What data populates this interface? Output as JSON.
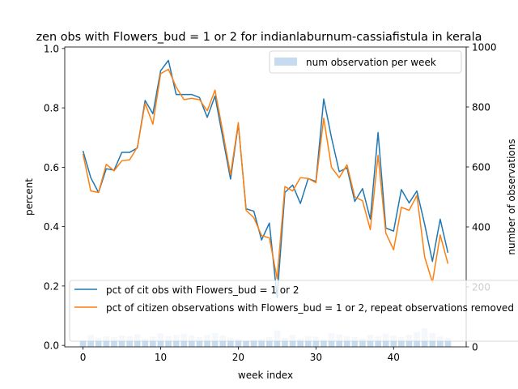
{
  "chart_data": {
    "type": "line",
    "title": "zen obs with Flowers_bud = 1 or 2 for indianlaburnum-cassiafistula in kerala",
    "xlabel": "week index",
    "ylabel": "percent",
    "y2label": "number of observations",
    "xlim": [
      -2.35,
      49.35
    ],
    "ylim": [
      -0.005,
      1.005
    ],
    "y2lim": [
      0,
      1000
    ],
    "xticks": [
      0,
      10,
      20,
      30,
      40
    ],
    "yticks": [
      0.0,
      0.2,
      0.4,
      0.6,
      0.8,
      1.0
    ],
    "y2ticks": [
      0,
      200,
      400,
      600,
      800,
      1000
    ],
    "grid": false,
    "series": [
      {
        "name": "pct of cit obs with Flowers_bud = 1 or 2",
        "color": "#1f77b4",
        "axis": "left",
        "kind": "line",
        "values": [
          0.655,
          0.565,
          0.515,
          0.595,
          0.59,
          0.65,
          0.65,
          0.665,
          0.825,
          0.78,
          0.925,
          0.96,
          0.845,
          0.845,
          0.845,
          0.835,
          0.768,
          0.84,
          0.7,
          0.56,
          0.745,
          0.46,
          0.452,
          0.355,
          0.412,
          0.162,
          0.515,
          0.54,
          0.478,
          0.562,
          0.552,
          0.83,
          0.7,
          0.585,
          0.598,
          0.485,
          0.528,
          0.425,
          0.717,
          0.395,
          0.385,
          0.525,
          0.48,
          0.52,
          0.408,
          0.283,
          0.425,
          0.312
        ]
      },
      {
        "name": "pct of citizen observations with Flowers_bud = 1 or 2, repeat observations removed",
        "color": "#ff7f0e",
        "axis": "left",
        "kind": "line",
        "values": [
          0.645,
          0.52,
          0.515,
          0.61,
          0.588,
          0.622,
          0.625,
          0.668,
          0.815,
          0.745,
          0.915,
          0.93,
          0.87,
          0.828,
          0.832,
          0.828,
          0.79,
          0.86,
          0.72,
          0.575,
          0.75,
          0.455,
          0.43,
          0.37,
          0.362,
          0.225,
          0.535,
          0.52,
          0.565,
          0.562,
          0.548,
          0.765,
          0.6,
          0.565,
          0.608,
          0.5,
          0.487,
          0.39,
          0.64,
          0.378,
          0.322,
          0.465,
          0.455,
          0.505,
          0.298,
          0.212,
          0.372,
          0.275
        ]
      },
      {
        "name": "num observation per week",
        "color": "#c6dbef",
        "axis": "right",
        "kind": "bar",
        "values": [
          22,
          40,
          30,
          35,
          32,
          38,
          35,
          42,
          28,
          34,
          45,
          36,
          40,
          44,
          38,
          32,
          40,
          46,
          38,
          30,
          26,
          20,
          24,
          26,
          32,
          55,
          30,
          40,
          28,
          36,
          34,
          26,
          46,
          42,
          36,
          32,
          28,
          40,
          36,
          44,
          38,
          32,
          40,
          50,
          62,
          46,
          34,
          30
        ]
      }
    ],
    "legends": [
      {
        "position": "upper-right",
        "entries": [
          "num observation per week"
        ]
      },
      {
        "position": "lower-left",
        "entries": [
          "pct of cit obs with Flowers_bud = 1 or 2",
          "pct of citizen observations with Flowers_bud = 1 or 2, repeat observations removed"
        ]
      }
    ]
  }
}
